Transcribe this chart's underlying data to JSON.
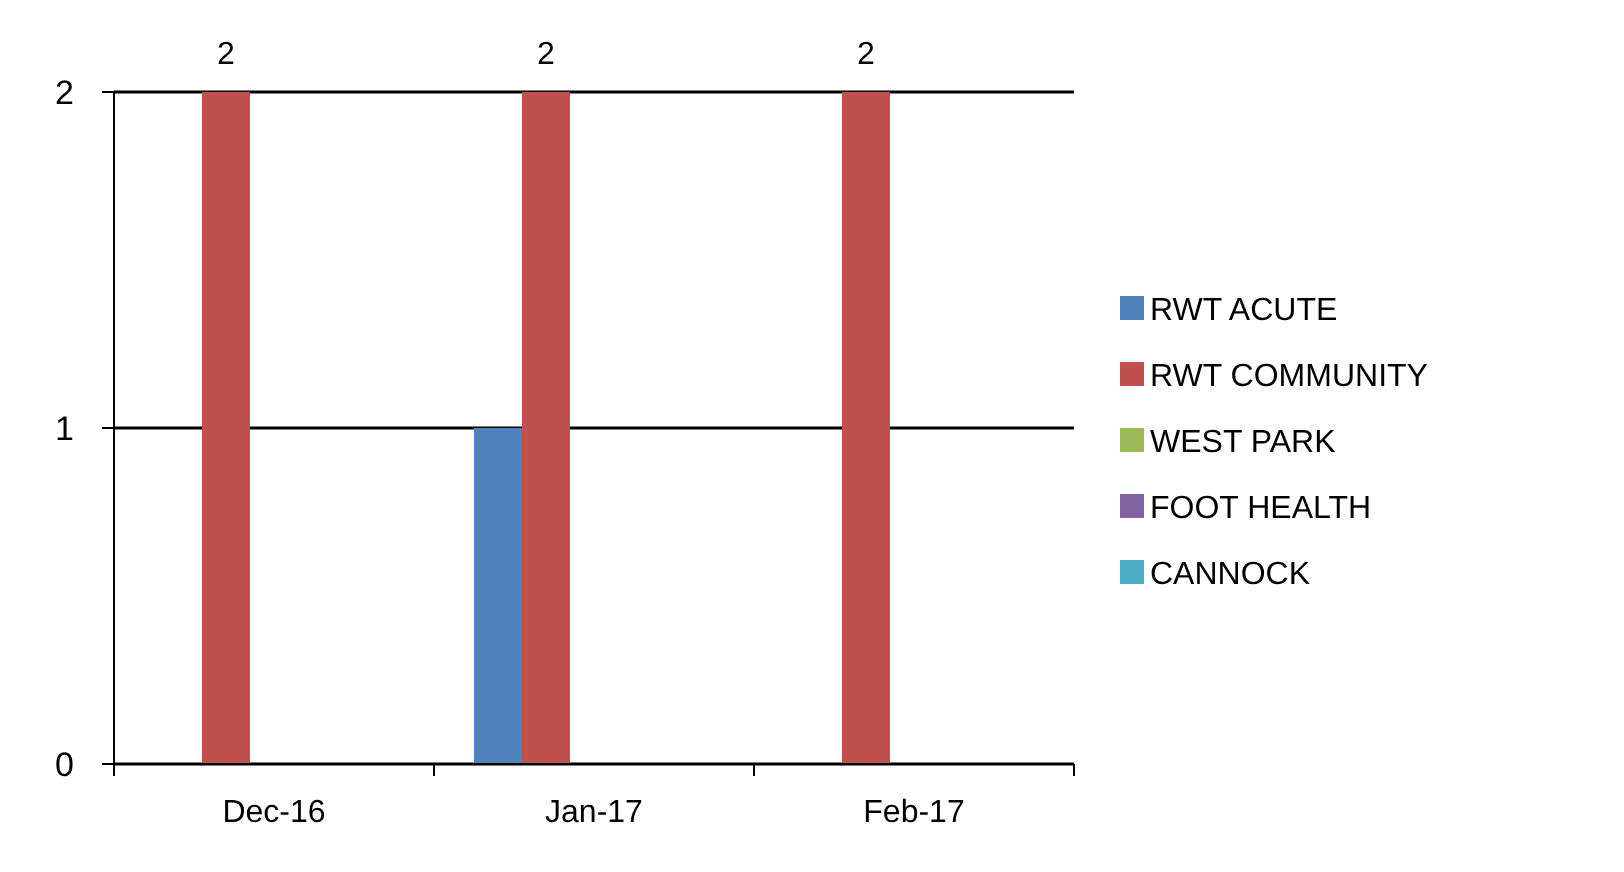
{
  "chart_data": {
    "type": "bar",
    "categories": [
      "Dec-16",
      "Jan-17",
      "Feb-17"
    ],
    "series": [
      {
        "name": "RWT ACUTE",
        "color": "#4f81bd",
        "values": [
          0,
          1,
          0
        ],
        "value_labels": [
          null,
          null,
          null
        ]
      },
      {
        "name": "RWT COMMUNITY",
        "color": "#c0504d",
        "values": [
          2,
          2,
          2
        ],
        "value_labels": [
          "2",
          "2",
          "2"
        ]
      },
      {
        "name": "WEST PARK",
        "color": "#9bbb59",
        "values": [
          0,
          0,
          0
        ],
        "value_labels": [
          null,
          null,
          null
        ]
      },
      {
        "name": "FOOT HEALTH",
        "color": "#8064a2",
        "values": [
          0,
          0,
          0
        ],
        "value_labels": [
          null,
          null,
          null
        ]
      },
      {
        "name": "CANNOCK",
        "color": "#4bacc6",
        "values": [
          0,
          0,
          0
        ],
        "value_labels": [
          null,
          null,
          null
        ]
      }
    ],
    "ylim": [
      0,
      2
    ],
    "yticks": [
      0,
      1,
      2
    ],
    "grid": "y",
    "legend": "right"
  }
}
